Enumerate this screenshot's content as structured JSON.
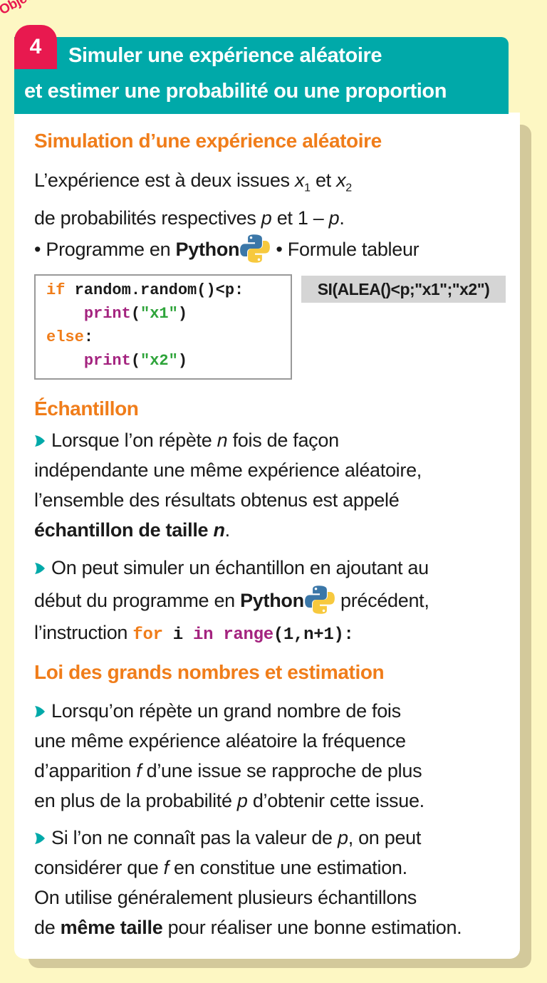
{
  "header": {
    "objective_label": "Objectif",
    "number": "4",
    "title_line1": "Simuler une expérience aléatoire",
    "title_line2": "et estimer une probabilité ou une proportion"
  },
  "colors": {
    "teal": "#00a9a9",
    "red": "#e8194f",
    "orange": "#f07d1a",
    "background": "#fdf7c3"
  },
  "section1": {
    "heading": "Simulation d’une expérience aléatoire",
    "lines": [
      [
        {
          "t": "L’expérience est à deux issues "
        },
        {
          "t": "x",
          "s": "i"
        },
        {
          "t": "1",
          "s": "sub"
        },
        {
          "t": " et "
        },
        {
          "t": "x",
          "s": "i"
        },
        {
          "t": "2",
          "s": "sub"
        }
      ],
      [
        {
          "t": "de probabilités respectives "
        },
        {
          "t": "p",
          "s": "i"
        },
        {
          "t": " et 1 – "
        },
        {
          "t": "p",
          "s": "i"
        },
        {
          "t": "."
        }
      ],
      [
        {
          "t": "• Programme en "
        },
        {
          "t": "Python",
          "s": "b"
        },
        {
          "t": "",
          "s": "py"
        },
        {
          "t": " • Formule tableur"
        }
      ]
    ],
    "code": [
      [
        {
          "t": "if",
          "s": "kw"
        },
        {
          "t": " random.random()<p:"
        }
      ],
      [
        {
          "t": "    "
        },
        {
          "t": "print",
          "s": "fn"
        },
        {
          "t": "("
        },
        {
          "t": "\"x1\"",
          "s": "str"
        },
        {
          "t": ")"
        }
      ],
      [
        {
          "t": "else",
          "s": "kw"
        },
        {
          "t": ":"
        }
      ],
      [
        {
          "t": "    "
        },
        {
          "t": "print",
          "s": "fn"
        },
        {
          "t": "("
        },
        {
          "t": "\"x2\"",
          "s": "str"
        },
        {
          "t": ")"
        }
      ]
    ],
    "formula": "SI(ALEA()<p;\"x1\";\"x2\")"
  },
  "section2": {
    "heading": "Échantillon",
    "para1": [
      [
        {
          "t": "",
          "s": "arrow"
        },
        {
          "t": "Lorsque l’on répète "
        },
        {
          "t": "n",
          "s": "i"
        },
        {
          "t": " fois de façon"
        }
      ],
      [
        {
          "t": "indépendante une même expérience aléatoire,"
        }
      ],
      [
        {
          "t": "l’ensemble des résultats obtenus est appelé"
        }
      ],
      [
        {
          "t": "échantillon de taille ",
          "s": "b"
        },
        {
          "t": "n",
          "s": "bi"
        },
        {
          "t": "."
        }
      ]
    ],
    "para2": [
      [
        {
          "t": "",
          "s": "arrow"
        },
        {
          "t": "On peut simuler un échantillon en ajoutant au"
        }
      ],
      [
        {
          "t": "début du programme en "
        },
        {
          "t": "Python",
          "s": "b"
        },
        {
          "t": "",
          "s": "py"
        },
        {
          "t": " précédent,"
        }
      ],
      [
        {
          "t": "l’instruction "
        },
        {
          "t": "for",
          "s": "mono kw"
        },
        {
          "t": " i ",
          "s": "mono"
        },
        {
          "t": "in",
          "s": "mono fn"
        },
        {
          "t": " ",
          "s": "mono"
        },
        {
          "t": "range",
          "s": "mono fn"
        },
        {
          "t": "(1,n+1):",
          "s": "mono"
        }
      ]
    ]
  },
  "section3": {
    "heading": "Loi des grands nombres et estimation",
    "para1": [
      [
        {
          "t": "",
          "s": "arrow"
        },
        {
          "t": "Lorsqu’on répète un grand nombre de fois"
        }
      ],
      [
        {
          "t": "une même expérience aléatoire la fréquence"
        }
      ],
      [
        {
          "t": "d’apparition "
        },
        {
          "t": "f",
          "s": "i"
        },
        {
          "t": " d’une issue se rapproche de plus"
        }
      ],
      [
        {
          "t": "en plus de la probabilité "
        },
        {
          "t": "p",
          "s": "i"
        },
        {
          "t": " d’obtenir cette issue."
        }
      ]
    ],
    "para2": [
      [
        {
          "t": "",
          "s": "arrow"
        },
        {
          "t": "Si l’on ne connaît pas la valeur de "
        },
        {
          "t": "p",
          "s": "i"
        },
        {
          "t": ", on peut"
        }
      ],
      [
        {
          "t": "considérer que "
        },
        {
          "t": "f",
          "s": "i"
        },
        {
          "t": " en constitue une estimation."
        }
      ],
      [
        {
          "t": "On utilise généralement plusieurs échantillons"
        }
      ],
      [
        {
          "t": "de "
        },
        {
          "t": "même taille",
          "s": "b"
        },
        {
          "t": " pour réaliser une bonne estimation."
        }
      ]
    ]
  }
}
